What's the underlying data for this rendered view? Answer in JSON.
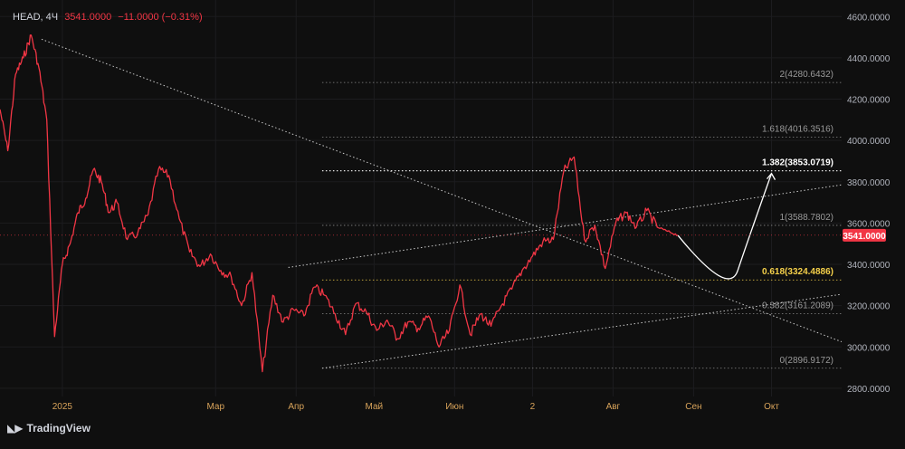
{
  "header": {
    "symbol": "HEAD, 4Ч",
    "price": "3541.0000",
    "change": "−11.0000 (−0.31%)"
  },
  "brand": {
    "icon": "tradingview-logo-icon",
    "label": "TradingView"
  },
  "colors": {
    "background": "#0f0f0f",
    "series": "#f23645",
    "grid": "#1c1c1f",
    "axis_text": "#b2b5be",
    "month_text": "#d8a35a",
    "fib_gold": "#f5d04a",
    "line_dotted": "#c8c8c8"
  },
  "chart_data": {
    "type": "line",
    "title": "",
    "ylim": [
      2760,
      4680
    ],
    "y_ticks": [
      2800,
      3000,
      3200,
      3400,
      3600,
      3800,
      4000,
      4200,
      4400,
      4600
    ],
    "y_tick_labels": [
      "2800.0000",
      "3000.0000",
      "3200.0000",
      "3400.0000",
      "3600.0000",
      "3800.0000",
      "4000.0000",
      "4200.0000",
      "4400.0000",
      "4600.0000"
    ],
    "x_range": [
      "2024-12-08",
      "2025-10-28"
    ],
    "x_ticks": [
      {
        "date": "2025-01-01",
        "label": "2025"
      },
      {
        "date": "2025-03-01",
        "label": "Мар"
      },
      {
        "date": "2025-04-01",
        "label": "Апр"
      },
      {
        "date": "2025-05-01",
        "label": "Май"
      },
      {
        "date": "2025-06-01",
        "label": "Июн"
      },
      {
        "date": "2025-07-01",
        "label": "2"
      },
      {
        "date": "2025-08-01",
        "label": "Авг"
      },
      {
        "date": "2025-09-01",
        "label": "Сен"
      },
      {
        "date": "2025-10-01",
        "label": "Окт"
      }
    ],
    "current_price": 3541,
    "current_price_label": "3541.0000",
    "series": [
      {
        "x": [
          "2024-12-08",
          "2024-12-11",
          "2024-12-14",
          "2024-12-17",
          "2024-12-20",
          "2024-12-23",
          "2024-12-26",
          "2024-12-29",
          "2025-01-01",
          "2025-01-04",
          "2025-01-07",
          "2025-01-10",
          "2025-01-13",
          "2025-01-16",
          "2025-01-19",
          "2025-01-22",
          "2025-01-26",
          "2025-01-30",
          "2025-02-03",
          "2025-02-07",
          "2025-02-11",
          "2025-02-15",
          "2025-02-19",
          "2025-02-23",
          "2025-02-27",
          "2025-03-03",
          "2025-03-07",
          "2025-03-11",
          "2025-03-15",
          "2025-03-19",
          "2025-03-23",
          "2025-03-27",
          "2025-03-31",
          "2025-04-04",
          "2025-04-08",
          "2025-04-12",
          "2025-04-16",
          "2025-04-20",
          "2025-04-24",
          "2025-04-28",
          "2025-05-02",
          "2025-05-06",
          "2025-05-10",
          "2025-05-14",
          "2025-05-18",
          "2025-05-22",
          "2025-05-26",
          "2025-05-30",
          "2025-06-03",
          "2025-06-07",
          "2025-06-11",
          "2025-06-15",
          "2025-06-19",
          "2025-06-23",
          "2025-06-27",
          "2025-07-01",
          "2025-07-05",
          "2025-07-09",
          "2025-07-13",
          "2025-07-17",
          "2025-07-21",
          "2025-07-25",
          "2025-07-29",
          "2025-08-02",
          "2025-08-06",
          "2025-08-10",
          "2025-08-14",
          "2025-08-18",
          "2025-08-22",
          "2025-08-26"
        ],
        "values": [
          4150,
          3950,
          4320,
          4400,
          4510,
          4350,
          4100,
          3050,
          3400,
          3500,
          3650,
          3720,
          3860,
          3800,
          3650,
          3700,
          3520,
          3550,
          3640,
          3860,
          3830,
          3620,
          3460,
          3390,
          3450,
          3370,
          3340,
          3200,
          3360,
          2880,
          3250,
          3120,
          3180,
          3150,
          3290,
          3250,
          3160,
          3060,
          3210,
          3170,
          3080,
          3130,
          3040,
          3120,
          3090,
          3150,
          3000,
          3080,
          3300,
          3060,
          3160,
          3100,
          3200,
          3280,
          3370,
          3440,
          3510,
          3520,
          3850,
          3920,
          3520,
          3590,
          3380,
          3600,
          3650,
          3580,
          3660,
          3580,
          3560,
          3541
        ]
      }
    ],
    "fib_levels": [
      {
        "ratio": "0",
        "price": 2896.9172,
        "label": "0(2896.9172)"
      },
      {
        "ratio": "0.382",
        "price": 3161.2089,
        "label": "0.382(3161.2089)"
      },
      {
        "ratio": "0.618",
        "price": 3324.4886,
        "label": "0.618(3324.4886)"
      },
      {
        "ratio": "1",
        "price": 3588.7802,
        "label": "1(3588.7802)"
      },
      {
        "ratio": "1.382",
        "price": 3853.0719,
        "label": "1.382(3853.0719)"
      },
      {
        "ratio": "1.618",
        "price": 4016.3516,
        "label": "1.618(4016.3516)"
      },
      {
        "ratio": "2",
        "price": 4280.6432,
        "label": "2(4280.6432)"
      }
    ],
    "trend_lines": [
      {
        "name": "descending-trendline",
        "from": {
          "date": "2024-12-24",
          "price": 4490
        },
        "to": {
          "date": "2025-10-28",
          "price": 3025
        }
      },
      {
        "name": "channel-upper",
        "from": {
          "date": "2025-03-29",
          "price": 3385
        },
        "to": {
          "date": "2025-10-28",
          "price": 3785
        }
      },
      {
        "name": "channel-lower",
        "from": {
          "date": "2025-04-11",
          "price": 2896.9172
        },
        "to": {
          "date": "2025-10-28",
          "price": 3255
        }
      }
    ],
    "projection": {
      "from": {
        "date": "2025-08-26",
        "price": 3540
      },
      "via": {
        "date": "2025-09-18",
        "price": 3370
      },
      "to": {
        "date": "2025-10-01",
        "price": 3840
      }
    }
  }
}
